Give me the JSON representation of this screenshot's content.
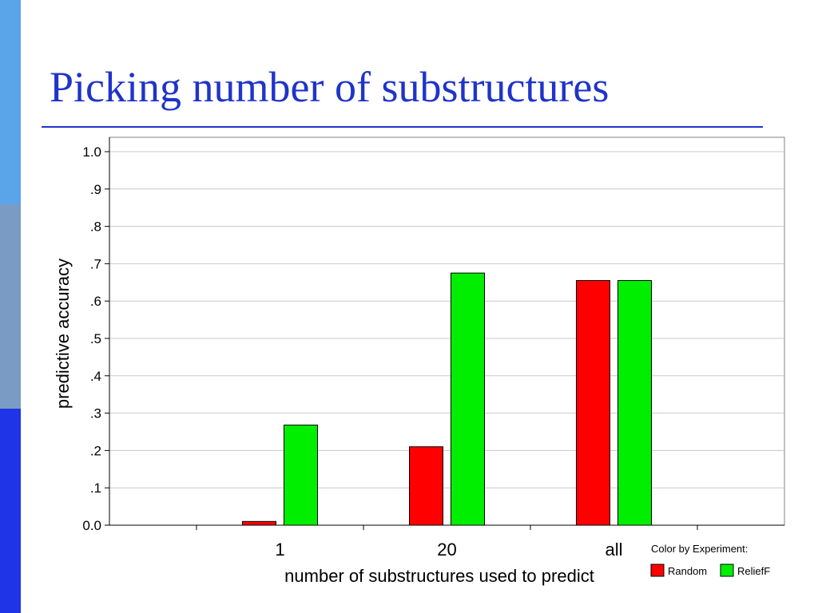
{
  "slide": {
    "title": "Picking number of substructures",
    "accent_colors": {
      "title": "#1f34c9",
      "bar_top": "#5aa5ea",
      "bar_mid": "#7a9cc4",
      "bar_bottom": "#1f34e6"
    }
  },
  "chart_data": {
    "type": "bar",
    "categories": [
      "1",
      "20",
      "all"
    ],
    "series": [
      {
        "name": "Random",
        "color": "#ff0000",
        "values": [
          0.01,
          0.21,
          0.655
        ]
      },
      {
        "name": "ReliefF",
        "color": "#00ee00",
        "values": [
          0.268,
          0.675,
          0.655
        ]
      }
    ],
    "ylim": [
      0,
      1
    ],
    "yticks": [
      "0.0",
      ".1",
      ".2",
      ".3",
      ".4",
      ".5",
      ".6",
      ".7",
      ".8",
      ".9",
      "1.0"
    ],
    "xlabel": "number of substructures used to predict",
    "ylabel": "predictive accuracy",
    "grid": true,
    "legend": {
      "title": "Color by Experiment:",
      "position": "bottom-right"
    }
  }
}
